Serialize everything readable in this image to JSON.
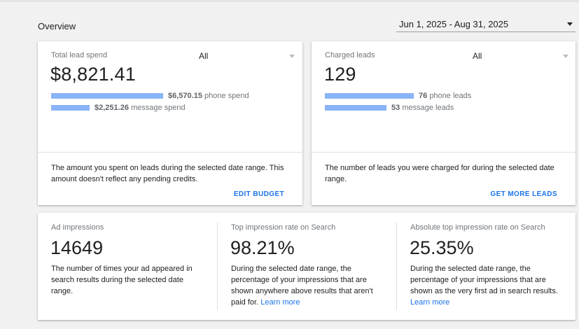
{
  "header": {
    "title": "Overview",
    "date_range": "Jun 1, 2025 - Aug 31, 2025"
  },
  "spend_card": {
    "label": "Total lead spend",
    "filter": "All",
    "value": "$8,821.41",
    "bars": [
      {
        "amount": "$6,570.15",
        "label": "phone spend",
        "fraction": 0.745
      },
      {
        "amount": "$2,251.26",
        "label": "message spend",
        "fraction": 0.255
      }
    ],
    "description": "The amount you spent on leads during the selected date range. This amount doesn't reflect any pending credits.",
    "action": "EDIT BUDGET"
  },
  "leads_card": {
    "label": "Charged leads",
    "filter": "All",
    "value": "129",
    "bars": [
      {
        "amount": "76",
        "label": "phone leads",
        "fraction": 0.589
      },
      {
        "amount": "53",
        "label": "message leads",
        "fraction": 0.411
      }
    ],
    "description": "The number of leads you were charged for during the selected date range.",
    "action": "GET MORE LEADS"
  },
  "impressions_card": {
    "columns": [
      {
        "label": "Ad impressions",
        "value": "14649",
        "description": "The number of times your ad appeared in search results during the selected date range.",
        "link": ""
      },
      {
        "label": "Top impression rate on Search",
        "value": "98.21%",
        "description": "During the selected date range, the percentage of your impressions that are shown anywhere above results that aren't paid for.",
        "link": "Learn more"
      },
      {
        "label": "Absolute top impression rate on Search",
        "value": "25.35%",
        "description": "During the selected date range, the percentage of your impressions that are shown as the very first ad in search results.",
        "link": "Learn more"
      }
    ]
  },
  "colors": {
    "bar": "#8ab4f8",
    "link": "#1a73e8",
    "background": "#f1f1f1"
  },
  "icons": {
    "dropdown": "chevron-down-icon"
  }
}
